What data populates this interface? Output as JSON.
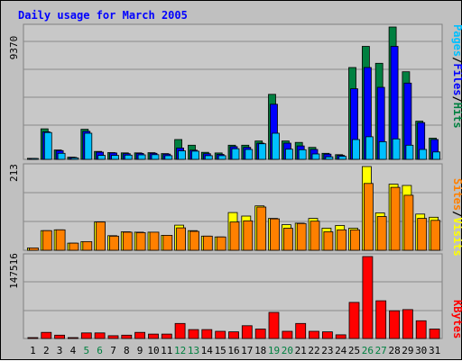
{
  "title": "Daily usage for March 2005",
  "colors": {
    "background": "#c0c0c0",
    "panel": "#c8c8c8",
    "grid": "#8a8a8a",
    "hits": "#008040",
    "files": "#0000ff",
    "pages": "#00c0ff",
    "visits": "#ffff00",
    "sites": "#ff8000",
    "kbytes": "#ff0000",
    "weekend_day": "#008040",
    "weekday": "#000000",
    "legend_sep": "#000000"
  },
  "y_max_labels": {
    "hits": "9370",
    "visits": "213",
    "kbytes": "147516"
  },
  "legend": {
    "top": [
      {
        "text": "Pages",
        "color": "pages"
      },
      {
        "text": "/",
        "color": "legend_sep"
      },
      {
        "text": "Files",
        "color": "files"
      },
      {
        "text": "/",
        "color": "legend_sep"
      },
      {
        "text": "Hits",
        "color": "hits"
      }
    ],
    "middle": [
      {
        "text": "Sites",
        "color": "sites"
      },
      {
        "text": "/",
        "color": "legend_sep"
      },
      {
        "text": "Visits",
        "color": "visits"
      }
    ],
    "bottom": [
      {
        "text": "KBytes",
        "color": "kbytes"
      }
    ]
  },
  "chart_data": [
    {
      "type": "bar",
      "panel": "top",
      "categories": [
        "1",
        "2",
        "3",
        "4",
        "5",
        "6",
        "7",
        "8",
        "9",
        "10",
        "11",
        "12",
        "13",
        "14",
        "15",
        "16",
        "17",
        "18",
        "19",
        "20",
        "21",
        "22",
        "23",
        "24",
        "25",
        "26",
        "27",
        "28",
        "29",
        "30",
        "31"
      ],
      "weekend_days": [
        "5",
        "6",
        "12",
        "13",
        "19",
        "20",
        "26",
        "27"
      ],
      "ylim": [
        0,
        9370
      ],
      "series": [
        {
          "name": "Hits",
          "values": [
            70,
            2160,
            660,
            150,
            2130,
            560,
            480,
            460,
            460,
            470,
            410,
            1400,
            1000,
            500,
            450,
            1000,
            1000,
            1300,
            4600,
            1300,
            1200,
            850,
            430,
            330,
            6500,
            8000,
            6800,
            9370,
            6200,
            2700,
            1500
          ]
        },
        {
          "name": "Files",
          "values": [
            60,
            1950,
            620,
            140,
            1980,
            510,
            450,
            400,
            420,
            430,
            370,
            800,
            650,
            400,
            350,
            900,
            850,
            1150,
            3900,
            1150,
            950,
            700,
            370,
            280,
            5000,
            6500,
            5100,
            8000,
            5400,
            2600,
            1400
          ]
        },
        {
          "name": "Pages",
          "values": [
            20,
            1900,
            430,
            100,
            1850,
            280,
            280,
            300,
            320,
            330,
            260,
            600,
            580,
            260,
            260,
            750,
            700,
            1100,
            1850,
            720,
            680,
            380,
            180,
            210,
            1400,
            1600,
            1250,
            1450,
            1000,
            700,
            520
          ]
        }
      ]
    },
    {
      "type": "bar",
      "panel": "middle",
      "categories": [
        "1",
        "2",
        "3",
        "4",
        "5",
        "6",
        "7",
        "8",
        "9",
        "10",
        "11",
        "12",
        "13",
        "14",
        "15",
        "16",
        "17",
        "18",
        "19",
        "20",
        "21",
        "22",
        "23",
        "24",
        "25",
        "26",
        "27",
        "28",
        "29",
        "30",
        "31"
      ],
      "ylim": [
        0,
        213
      ],
      "series": [
        {
          "name": "Visits",
          "values": [
            6,
            50,
            52,
            18,
            22,
            72,
            37,
            47,
            46,
            46,
            38,
            64,
            50,
            36,
            34,
            96,
            87,
            113,
            81,
            65,
            69,
            81,
            56,
            63,
            56,
            213,
            95,
            168,
            165,
            92,
            84
          ]
        },
        {
          "name": "Sites",
          "values": [
            6,
            50,
            52,
            18,
            22,
            72,
            36,
            46,
            45,
            46,
            38,
            57,
            48,
            36,
            34,
            72,
            75,
            110,
            80,
            56,
            68,
            74,
            47,
            52,
            52,
            170,
            86,
            160,
            140,
            81,
            76
          ]
        }
      ]
    },
    {
      "type": "bar",
      "panel": "bottom",
      "categories": [
        "1",
        "2",
        "3",
        "4",
        "5",
        "6",
        "7",
        "8",
        "9",
        "10",
        "11",
        "12",
        "13",
        "14",
        "15",
        "16",
        "17",
        "18",
        "19",
        "20",
        "21",
        "22",
        "23",
        "24",
        "25",
        "26",
        "27",
        "28",
        "29",
        "30",
        "31"
      ],
      "ylim": [
        0,
        147516
      ],
      "series": [
        {
          "name": "KBytes",
          "values": [
            1400,
            11000,
            6000,
            1600,
            10000,
            10000,
            5000,
            6000,
            11000,
            8000,
            8000,
            27000,
            16000,
            16000,
            13000,
            12000,
            23000,
            17000,
            47000,
            13000,
            27000,
            13000,
            12000,
            6600,
            65000,
            147516,
            68000,
            50000,
            52000,
            32000,
            17000
          ]
        }
      ]
    }
  ]
}
